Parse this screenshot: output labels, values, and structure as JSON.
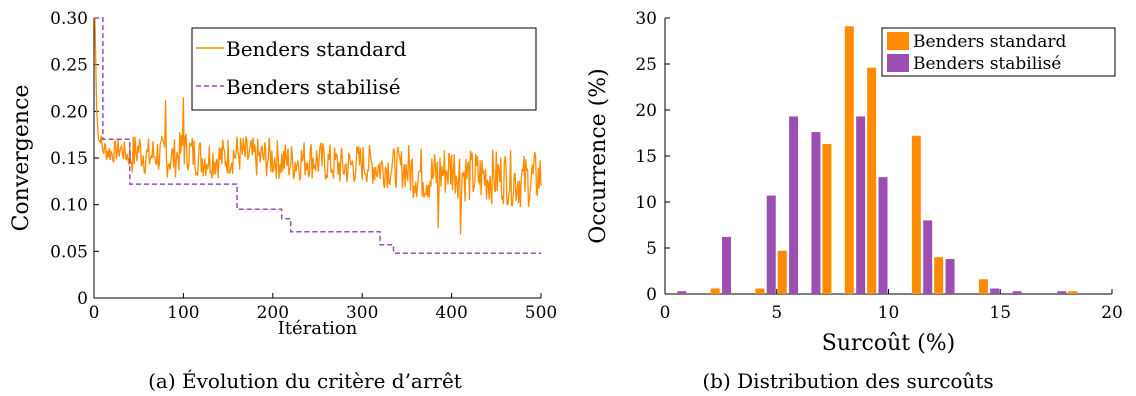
{
  "chart_data": [
    {
      "type": "line",
      "caption": "(a) Évolution du critère d’arrêt",
      "xlabel": "Itération",
      "ylabel": "Convergence",
      "xlim": [
        0,
        500
      ],
      "ylim": [
        0,
        0.3
      ],
      "xticks": [
        "0",
        "100",
        "200",
        "300",
        "400",
        "500"
      ],
      "yticks": [
        "0",
        "0.05",
        "0.10",
        "0.15",
        "0.20",
        "0.25",
        "0.30"
      ],
      "legend_position": "top-right",
      "series": [
        {
          "name": "Benders standard",
          "style": "solid",
          "color": "#ff8c00",
          "description": "noisy line oscillating around 0.15, slowly decreasing to about 0.13 with peaks up to 0.22 and dips to 0.07",
          "x": [
            1,
            3,
            5,
            8,
            10,
            20,
            30,
            40,
            50,
            60,
            70,
            80,
            90,
            100,
            120,
            140,
            160,
            180,
            200,
            220,
            240,
            260,
            280,
            300,
            320,
            340,
            360,
            380,
            400,
            420,
            440,
            460,
            480,
            500
          ],
          "y": [
            0.3,
            0.2,
            0.17,
            0.165,
            0.16,
            0.155,
            0.16,
            0.15,
            0.16,
            0.15,
            0.155,
            0.15,
            0.15,
            0.16,
            0.15,
            0.15,
            0.155,
            0.15,
            0.15,
            0.145,
            0.15,
            0.145,
            0.14,
            0.145,
            0.14,
            0.14,
            0.135,
            0.13,
            0.14,
            0.13,
            0.13,
            0.13,
            0.125,
            0.13
          ]
        },
        {
          "name": "Benders stabilisé",
          "style": "dashed",
          "color": "#9b4fb0",
          "x": [
            0,
            10,
            10,
            15,
            40,
            40,
            160,
            160,
            190,
            190,
            210,
            210,
            220,
            220,
            320,
            320,
            335,
            335,
            500
          ],
          "y": [
            0.3,
            0.3,
            0.17,
            0.17,
            0.17,
            0.122,
            0.122,
            0.095,
            0.095,
            0.095,
            0.095,
            0.085,
            0.085,
            0.071,
            0.071,
            0.057,
            0.057,
            0.048,
            0.048
          ]
        }
      ]
    },
    {
      "type": "bar",
      "caption": "(b) Distribution des surcoûts",
      "xlabel": "Surcoût (%)",
      "ylabel": "Occurrence (%)",
      "xlim": [
        0,
        20
      ],
      "ylim": [
        0,
        30
      ],
      "xticks": [
        "0",
        "5",
        "10",
        "15",
        "20"
      ],
      "yticks": [
        "0",
        "5",
        "10",
        "15",
        "20",
        "25",
        "30"
      ],
      "legend_position": "top-right",
      "categories": [
        1,
        2,
        3,
        4,
        5,
        6,
        7,
        8,
        9,
        10,
        11,
        12,
        13,
        14,
        15,
        16,
        17,
        18
      ],
      "series": [
        {
          "name": "Benders standard",
          "color": "#ff8c00",
          "values": [
            0,
            0.6,
            0,
            0.6,
            4.7,
            0,
            16.3,
            29.1,
            24.6,
            0,
            17.2,
            4.0,
            0,
            1.6,
            0,
            0,
            0,
            0.3
          ]
        },
        {
          "name": "Benders stabilisé",
          "color": "#9b4fb0",
          "values": [
            0.3,
            0,
            6.2,
            0,
            10.7,
            19.3,
            17.6,
            0,
            19.3,
            12.7,
            0,
            8.0,
            3.8,
            0,
            0.6,
            0.3,
            0,
            0.3
          ]
        }
      ]
    }
  ]
}
